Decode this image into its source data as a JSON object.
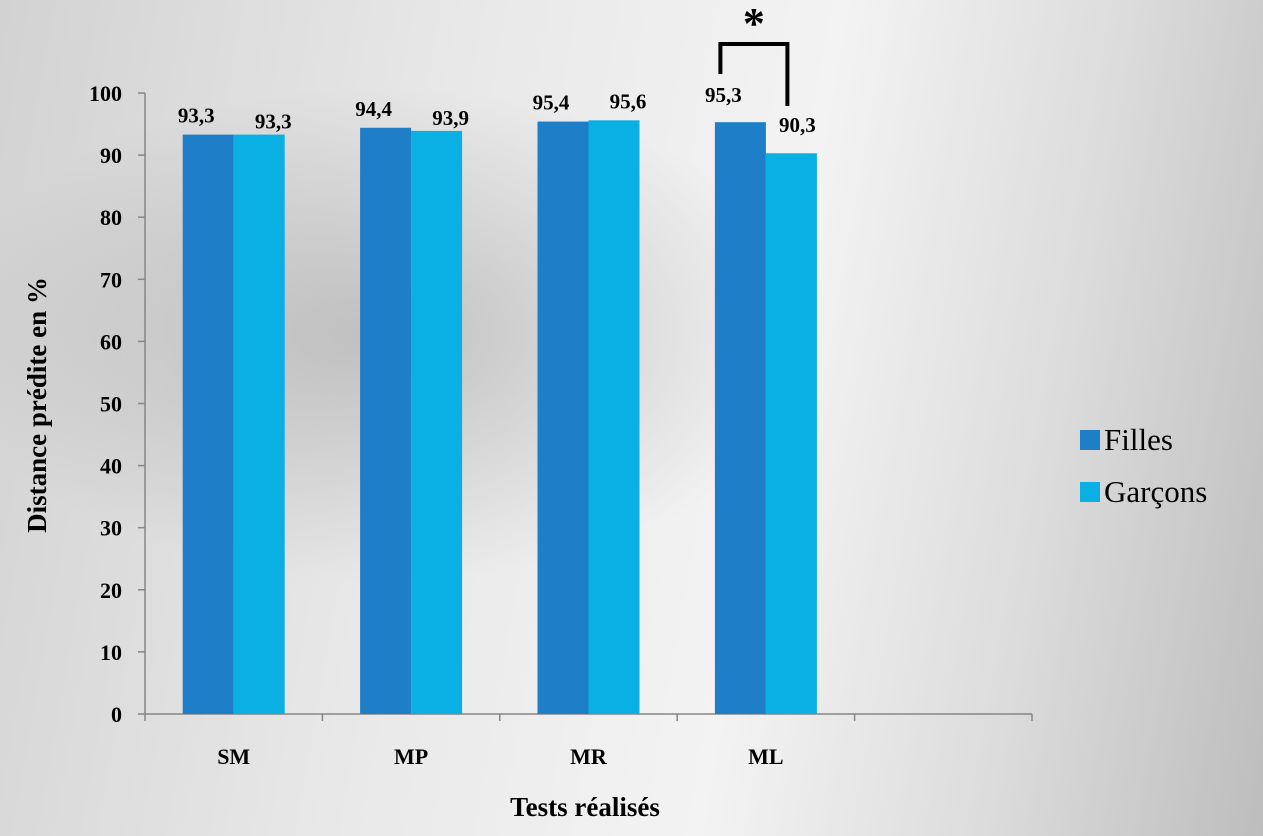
{
  "chart_data": {
    "type": "bar",
    "title": "",
    "xlabel": "Tests réalisés",
    "ylabel": "Distance prédite en %",
    "categories": [
      "SM",
      "MP",
      "MR",
      "ML"
    ],
    "series": [
      {
        "name": "Filles",
        "values": [
          93.3,
          94.4,
          95.4,
          95.3
        ],
        "labels": [
          "93,3",
          "94,4",
          "95,4",
          "95,3"
        ],
        "color": "#1f7ec8"
      },
      {
        "name": "Garçons",
        "values": [
          93.3,
          93.9,
          95.6,
          90.3
        ],
        "labels": [
          "93,3",
          "93,9",
          "95,6",
          "90,3"
        ],
        "color": "#0ab0e3"
      }
    ],
    "ylim": [
      0,
      100
    ],
    "yticks": [
      0,
      10,
      20,
      30,
      40,
      50,
      60,
      70,
      80,
      90,
      100
    ],
    "grid": false,
    "legend_position": "right",
    "annotations": [
      {
        "text": "*",
        "category": "ML",
        "meaning": "significance bracket between Filles and Garçons"
      }
    ]
  }
}
